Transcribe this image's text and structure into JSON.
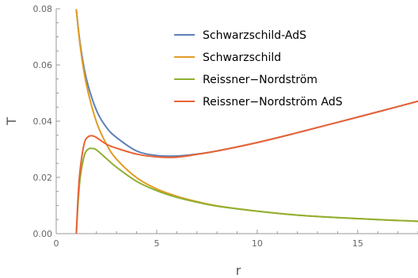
{
  "chart_data": {
    "type": "line",
    "xlabel": "r",
    "ylabel": "T",
    "xlim": [
      0,
      18
    ],
    "ylim": [
      0,
      0.08
    ],
    "x_ticks": [
      0,
      5,
      10,
      15
    ],
    "y_ticks": [
      0.0,
      0.02,
      0.04,
      0.06,
      0.08
    ],
    "x_tick_labels": [
      "0",
      "5",
      "10",
      "15"
    ],
    "y_tick_labels": [
      "0.00",
      "0.02",
      "0.04",
      "0.06",
      "0.08"
    ],
    "grid": false,
    "legend_position": "top-right",
    "series": [
      {
        "name": "Schwarzschild-AdS",
        "color": "#5e81b5",
        "x": [
          1.0,
          1.2,
          1.5,
          2.0,
          2.5,
          3.0,
          4.0,
          5.0,
          6.0,
          7.0,
          8.0,
          10.0,
          12.0,
          14.0,
          16.0,
          18.0
        ],
        "y": [
          0.0796,
          0.0672,
          0.0551,
          0.0439,
          0.0378,
          0.0342,
          0.0294,
          0.0278,
          0.0276,
          0.0283,
          0.0294,
          0.0324,
          0.0359,
          0.0396,
          0.0433,
          0.0471
        ]
      },
      {
        "name": "Schwarzschild",
        "color": "#e19c24",
        "x": [
          1.0,
          1.2,
          1.5,
          2.0,
          2.5,
          3.0,
          4.0,
          5.0,
          6.0,
          7.0,
          8.0,
          10.0,
          12.0,
          14.0,
          16.0,
          18.0
        ],
        "y": [
          0.0796,
          0.0663,
          0.0531,
          0.0398,
          0.0318,
          0.0265,
          0.0199,
          0.0159,
          0.0133,
          0.0114,
          0.0099,
          0.008,
          0.0066,
          0.0057,
          0.005,
          0.0044
        ]
      },
      {
        "name": "Reissner−Nordström",
        "color": "#8fb032",
        "x": [
          1.0,
          1.1,
          1.2,
          1.4,
          1.6,
          1.8,
          2.0,
          2.5,
          3.0,
          4.0,
          5.0,
          6.0,
          7.0,
          8.0,
          10.0,
          12.0,
          14.0,
          16.0,
          18.0
        ],
        "y": [
          0.0,
          0.0123,
          0.0202,
          0.0278,
          0.0301,
          0.0303,
          0.0298,
          0.0267,
          0.0236,
          0.0186,
          0.0153,
          0.0129,
          0.0112,
          0.0098,
          0.008,
          0.0066,
          0.0057,
          0.005,
          0.0044
        ]
      },
      {
        "name": "Reissner−Nordström AdS",
        "color": "#eb6235",
        "x": [
          1.0,
          1.1,
          1.2,
          1.4,
          1.6,
          1.8,
          2.0,
          2.5,
          3.0,
          4.0,
          5.0,
          6.0,
          7.0,
          8.0,
          10.0,
          12.0,
          14.0,
          16.0,
          18.0
        ],
        "y": [
          0.0,
          0.0146,
          0.0234,
          0.0322,
          0.0345,
          0.0348,
          0.0342,
          0.0318,
          0.0304,
          0.0283,
          0.0273,
          0.0272,
          0.0282,
          0.0294,
          0.0324,
          0.0359,
          0.0396,
          0.0433,
          0.0471
        ]
      }
    ]
  }
}
